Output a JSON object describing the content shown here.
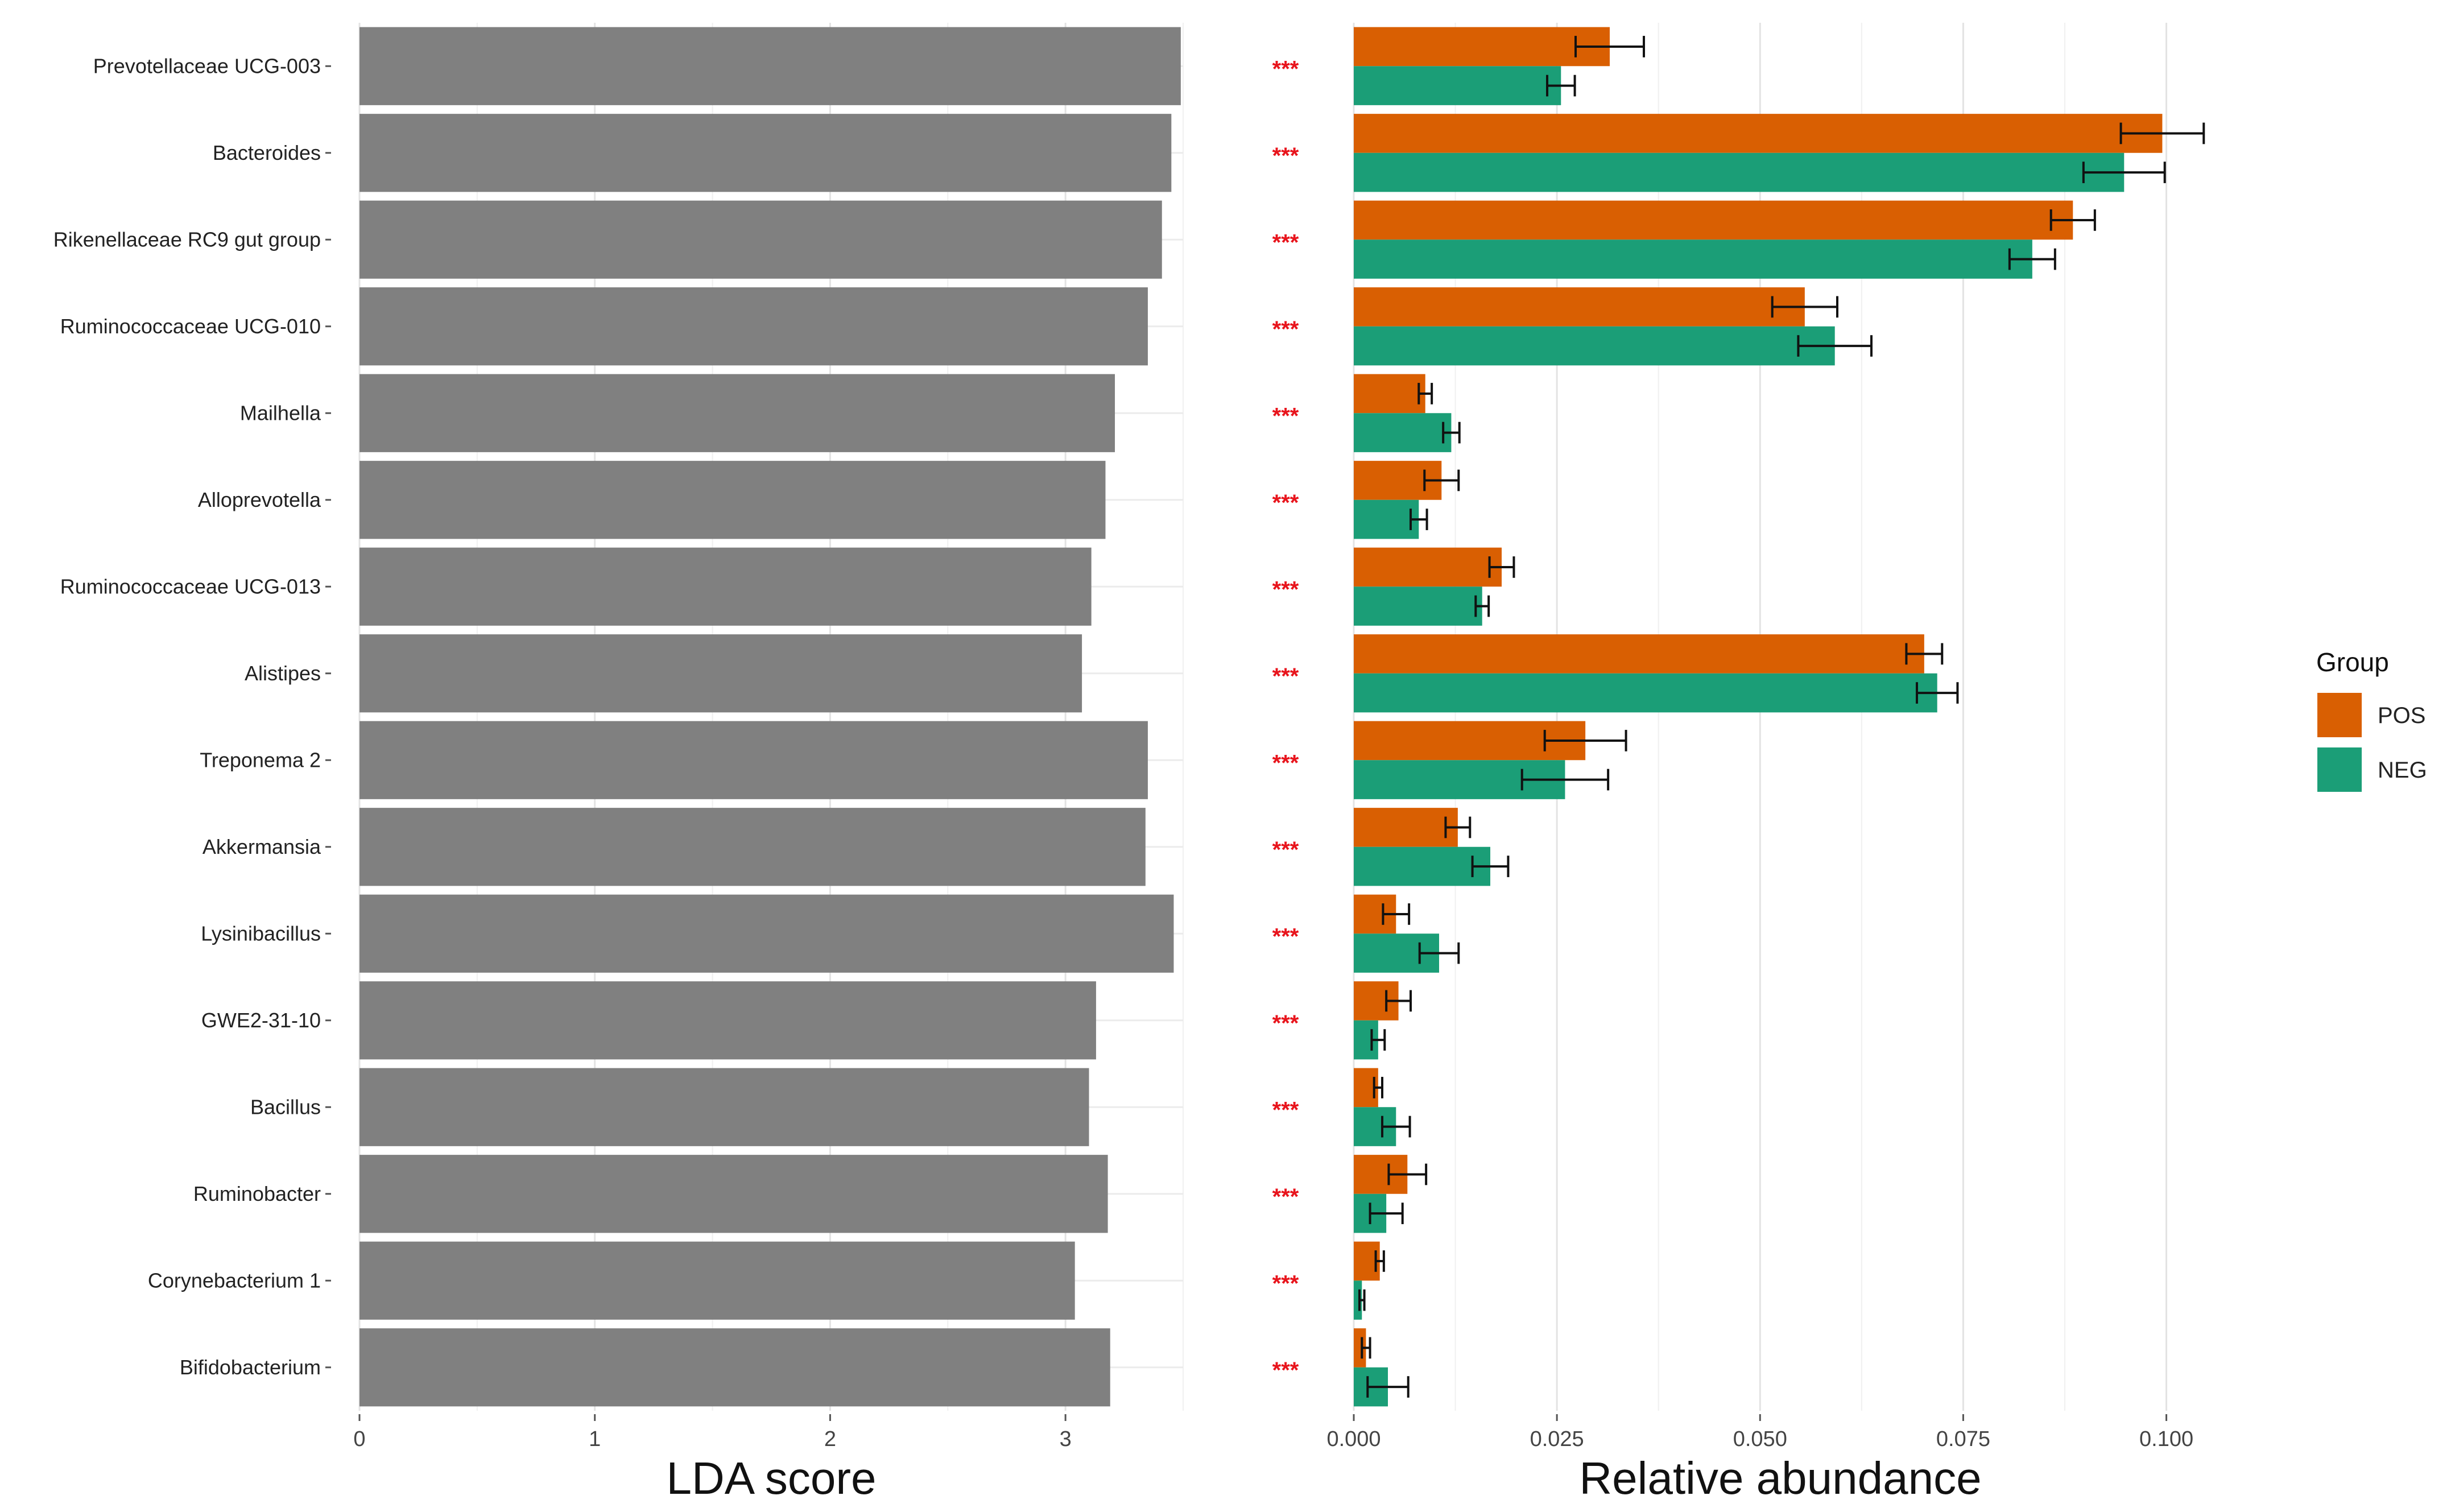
{
  "chart_data": [
    {
      "type": "bar",
      "orientation": "horizontal",
      "panel": "lda",
      "xlabel": "LDA score",
      "ylabel": "",
      "xlim": [
        0,
        3.5
      ],
      "grid": true,
      "xticks": [
        "0",
        "1",
        "2",
        "3"
      ],
      "categories": [
        "Prevotellaceae UCG-003",
        "Bacteroides",
        "Rikenellaceae RC9 gut group",
        "Ruminococcaceae UCG-010",
        "Mailhella",
        "Alloprevotella",
        "Ruminococcaceae UCG-013",
        "Alistipes",
        "Treponema 2",
        "Akkermansia",
        "Lysinibacillus",
        "GWE2-31-10",
        "Bacillus",
        "Ruminobacter",
        "Corynebacterium 1",
        "Bifidobacterium"
      ],
      "values": [
        3.49,
        3.45,
        3.41,
        3.35,
        3.21,
        3.17,
        3.11,
        3.07,
        3.35,
        3.34,
        3.46,
        3.13,
        3.1,
        3.18,
        3.04,
        3.19
      ],
      "bar_color": "#808080"
    },
    {
      "type": "bar",
      "orientation": "horizontal",
      "panel": "abundance",
      "xlabel": "Relative abundance",
      "ylabel": "",
      "xlim": [
        0,
        0.105
      ],
      "grid": true,
      "xticks": [
        "0.000",
        "0.025",
        "0.050",
        "0.075",
        "0.100"
      ],
      "significance": "***",
      "categories": [
        "Prevotellaceae UCG-003",
        "Bacteroides",
        "Rikenellaceae RC9 gut group",
        "Ruminococcaceae UCG-010",
        "Mailhella",
        "Alloprevotella",
        "Ruminococcaceae UCG-013",
        "Alistipes",
        "Treponema 2",
        "Akkermansia",
        "Lysinibacillus",
        "GWE2-31-10",
        "Bacillus",
        "Ruminobacter",
        "Corynebacterium 1",
        "Bifidobacterium"
      ],
      "series": [
        {
          "name": "POS",
          "color": "#D95F02",
          "values": [
            0.0315,
            0.0995,
            0.0885,
            0.0555,
            0.0088,
            0.0108,
            0.0182,
            0.0702,
            0.0285,
            0.0128,
            0.0052,
            0.0055,
            0.003,
            0.0066,
            0.0032,
            0.0015
          ],
          "errors": [
            0.0042,
            0.0051,
            0.0027,
            0.004,
            0.0008,
            0.0021,
            0.0015,
            0.0022,
            0.005,
            0.0015,
            0.0016,
            0.0015,
            0.0005,
            0.0023,
            0.0005,
            0.0005
          ]
        },
        {
          "name": "NEG",
          "color": "#1B9E77",
          "values": [
            0.0255,
            0.0948,
            0.0835,
            0.0592,
            0.012,
            0.008,
            0.0158,
            0.0718,
            0.026,
            0.0168,
            0.0105,
            0.003,
            0.0052,
            0.004,
            0.001,
            0.0042
          ],
          "errors": [
            0.0017,
            0.005,
            0.0028,
            0.0045,
            0.001,
            0.001,
            0.0008,
            0.0025,
            0.0053,
            0.0022,
            0.0024,
            0.0008,
            0.0017,
            0.002,
            0.0003,
            0.0025
          ]
        }
      ]
    }
  ],
  "legend": {
    "title": "Group",
    "items": [
      {
        "label": "POS",
        "color": "#D95F02"
      },
      {
        "label": "NEG",
        "color": "#1B9E77"
      }
    ]
  }
}
